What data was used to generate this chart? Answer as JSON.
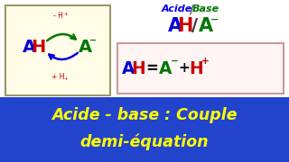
{
  "bg_color": "#ffffff",
  "blue_banner_color": "#2244cc",
  "box_bg_color": "#fffde8",
  "box_border_color": "#999966",
  "eq_box_bg": "#fff5f5",
  "eq_box_border": "#cc9999",
  "color_blue": "#0000dd",
  "color_green": "#007700",
  "color_red": "#cc0000",
  "color_yellow": "#ffff00",
  "banner_text1": "Acide - base : Couple",
  "banner_text2": "demi-équation"
}
